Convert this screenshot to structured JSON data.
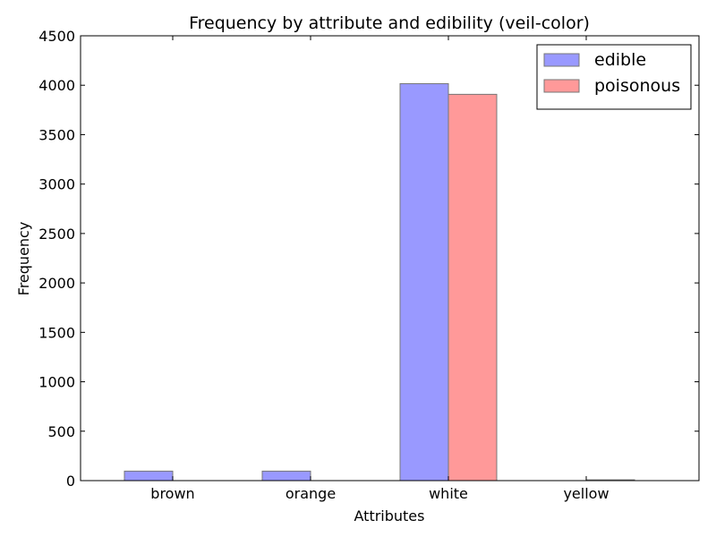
{
  "chart_data": {
    "type": "bar",
    "title": "Frequency by attribute and edibility (veil-color)",
    "xlabel": "Attributes",
    "ylabel": "Frequency",
    "categories": [
      "brown",
      "orange",
      "white",
      "yellow"
    ],
    "series": [
      {
        "name": "edible",
        "values": [
          96,
          96,
          4016,
          0
        ],
        "color": "#9999ff"
      },
      {
        "name": "poisonous",
        "values": [
          0,
          0,
          3908,
          8
        ],
        "color": "#ff9999"
      }
    ],
    "ylim": [
      0,
      4500
    ],
    "yticks": [
      0,
      500,
      1000,
      1500,
      2000,
      2500,
      3000,
      3500,
      4000,
      4500
    ],
    "legend_position": "top-right",
    "grid": false
  }
}
